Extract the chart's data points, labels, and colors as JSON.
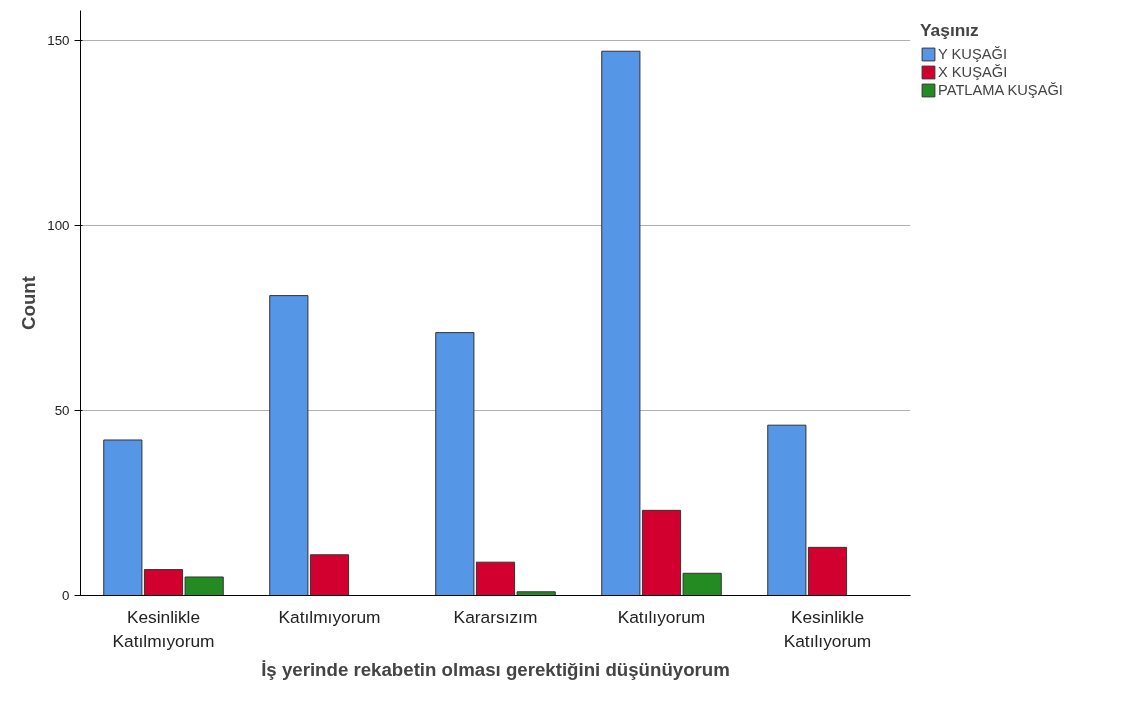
{
  "chart_data": {
    "type": "bar",
    "xlabel": "İş yerinde rekabetin olması gerektiğini düşünüyorum",
    "ylabel": "Count",
    "legend_title": "Yaşınız",
    "categories": [
      "Kesinlikle Katılmıyorum",
      "Katılmıyorum",
      "Kararsızım",
      "Katılıyorum",
      "Kesinlikle Katılıyorum"
    ],
    "series": [
      {
        "name": "Y KUŞAĞI",
        "color": "#5596e6",
        "values": [
          42,
          81,
          71,
          147,
          46
        ]
      },
      {
        "name": "X KUŞAĞI",
        "color": "#d2002e",
        "values": [
          7,
          11,
          9,
          23,
          13
        ]
      },
      {
        "name": "PATLAMA KUŞAĞI",
        "color": "#238b21",
        "values": [
          5,
          0,
          1,
          6,
          0
        ]
      }
    ],
    "ylim": [
      0,
      158
    ],
    "yticks": [
      0,
      50,
      100,
      150
    ],
    "grid": "y",
    "legend": "top right"
  }
}
